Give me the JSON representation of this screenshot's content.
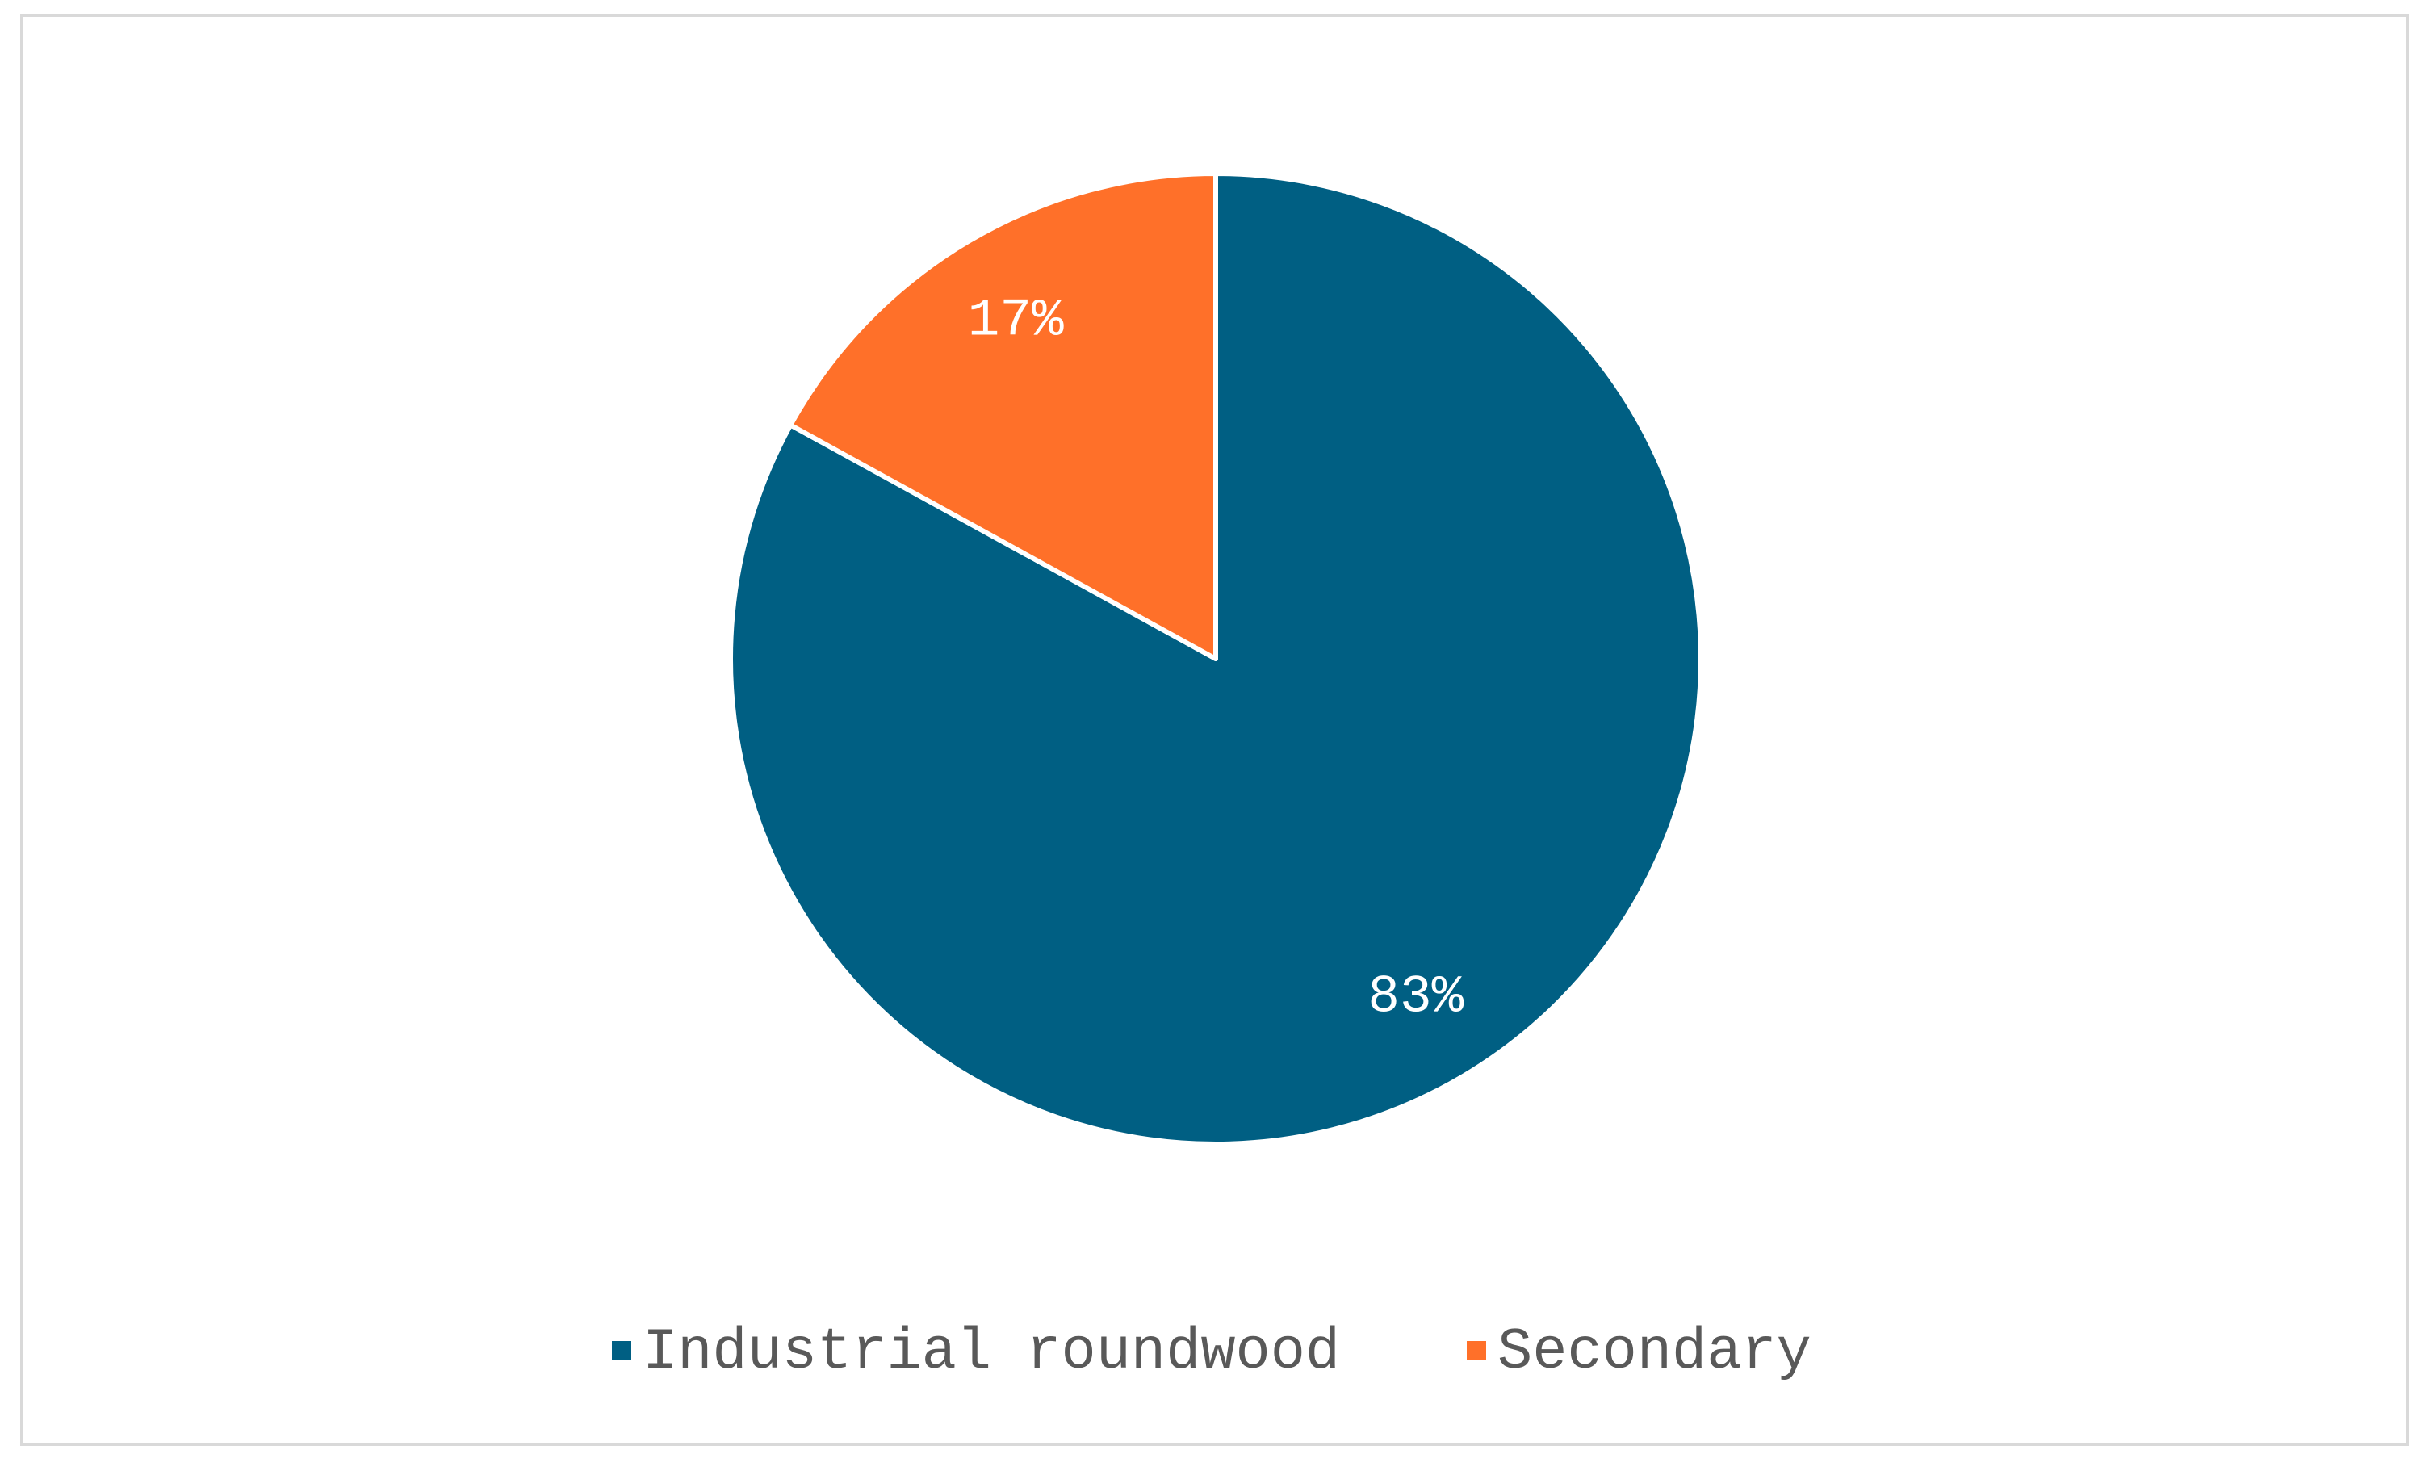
{
  "chart_data": {
    "type": "pie",
    "categories": [
      "Industrial roundwood",
      "Secondary"
    ],
    "values": [
      83,
      17
    ],
    "value_labels": [
      "83%",
      "17%"
    ],
    "colors": [
      "#005f83",
      "#ff7029"
    ],
    "legend": "bottom"
  }
}
